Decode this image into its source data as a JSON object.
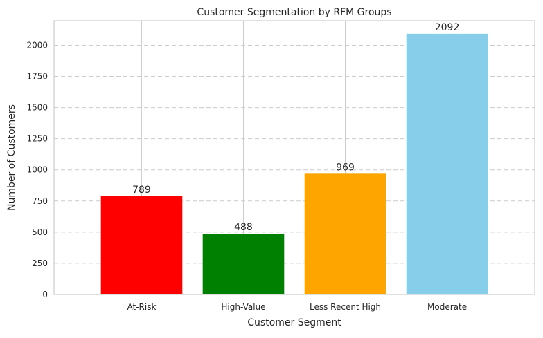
{
  "chart_data": {
    "type": "bar",
    "title": "Customer Segmentation by RFM Groups",
    "xlabel": "Customer Segment",
    "ylabel": "Number of Customers",
    "categories": [
      "At-Risk",
      "High-Value",
      "Less Recent High",
      "Moderate"
    ],
    "values": [
      789,
      488,
      969,
      2092
    ],
    "colors": [
      "#ff0000",
      "#008000",
      "#ffa500",
      "#87ceeb"
    ],
    "data_labels": [
      "789",
      "488",
      "969",
      "2092"
    ],
    "ylim": [
      0,
      2196.6
    ],
    "yticks": [
      0,
      250,
      500,
      750,
      1000,
      1250,
      1500,
      1750,
      2000
    ],
    "ytick_labels": [
      "0",
      "250",
      "500",
      "750",
      "1000",
      "1250",
      "1500",
      "1750",
      "2000"
    ],
    "grid": {
      "y": "dashed",
      "x": "solid"
    },
    "legend": "none"
  }
}
